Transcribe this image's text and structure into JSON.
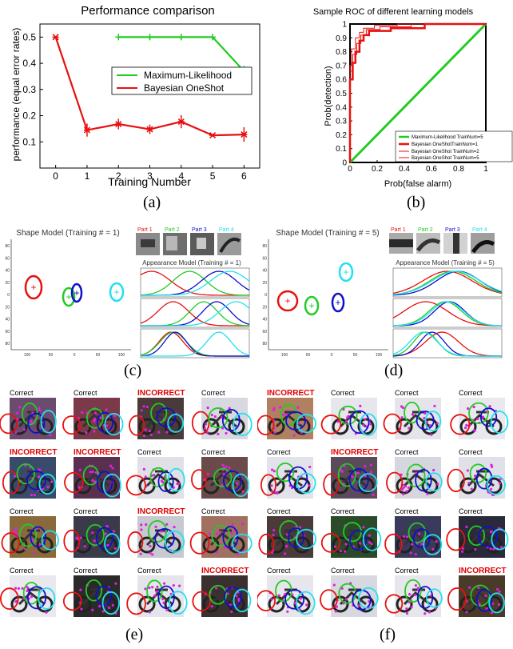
{
  "figure": {
    "captions": [
      "(a)",
      "(b)",
      "(c)",
      "(d)",
      "(e)",
      "(f)"
    ],
    "colors": {
      "red": "#e81010",
      "green": "#22cc22",
      "blue": "#1010cc",
      "cyan": "#22e0f0",
      "magenta": "#dd22dd"
    }
  },
  "chart_data": [
    {
      "type": "line",
      "title": "Performance comparison",
      "xlabel": "Training Number",
      "ylabel": "performance (equal error rates)",
      "xlim": [
        -0.5,
        6.5
      ],
      "ylim": [
        0.0,
        0.55
      ],
      "xticks": [
        "0",
        "1",
        "2",
        "3",
        "4",
        "5",
        "6"
      ],
      "yticks": [
        "0.1",
        "0.2",
        "0.3",
        "0.4",
        "0.5"
      ],
      "legend_position": "center-right",
      "series": [
        {
          "name": "Maximum-Likelihood",
          "color": "#22cc22",
          "x": [
            2,
            3,
            4,
            5,
            6
          ],
          "y": [
            0.5,
            0.5,
            0.5,
            0.5,
            0.37
          ],
          "err": [
            0,
            0,
            0,
            0,
            0.02
          ]
        },
        {
          "name": "Bayesian OneShot",
          "color": "#e81010",
          "x": [
            0,
            1,
            2,
            3,
            4,
            5,
            6
          ],
          "y": [
            0.5,
            0.145,
            0.168,
            0.148,
            0.177,
            0.125,
            0.128
          ],
          "err": [
            0,
            0.025,
            0.02,
            0.018,
            0.025,
            0.005,
            0.028
          ]
        }
      ]
    },
    {
      "type": "line",
      "title": "Sample ROC of different learning models",
      "xlabel": "Prob(false alarm)",
      "ylabel": "Prob(detection)",
      "xlim": [
        0,
        1
      ],
      "ylim": [
        0,
        1
      ],
      "xticks": [
        "0",
        "0.2",
        "0.4",
        "0.6",
        "0.8",
        "1"
      ],
      "yticks": [
        "0",
        "0.1",
        "0.2",
        "0.3",
        "0.4",
        "0.5",
        "0.6",
        "0.7",
        "0.8",
        "0.9",
        "1"
      ],
      "legend_position": "bottom-right",
      "series": [
        {
          "name": "Maximum-Likelihood TrainNum=5",
          "color": "#22cc22",
          "width": 3,
          "points": [
            [
              0,
              0
            ],
            [
              1,
              1
            ]
          ]
        },
        {
          "name": "Bayesian OneShotTrainNum=1",
          "color": "#e81010",
          "width": 2.5,
          "points": [
            [
              0,
              0
            ],
            [
              0,
              0.6
            ],
            [
              0.02,
              0.6
            ],
            [
              0.02,
              0.72
            ],
            [
              0.04,
              0.72
            ],
            [
              0.04,
              0.8
            ],
            [
              0.07,
              0.8
            ],
            [
              0.07,
              0.88
            ],
            [
              0.1,
              0.88
            ],
            [
              0.1,
              0.92
            ],
            [
              0.14,
              0.92
            ],
            [
              0.14,
              0.95
            ],
            [
              0.3,
              0.95
            ],
            [
              0.3,
              0.97
            ],
            [
              0.55,
              0.97
            ],
            [
              0.55,
              1
            ],
            [
              1,
              1
            ]
          ]
        },
        {
          "name": "Bayesian OneShot TrainNum=2",
          "color": "#e81010",
          "width": 1,
          "points": [
            [
              0,
              0
            ],
            [
              0,
              0.66
            ],
            [
              0.02,
              0.66
            ],
            [
              0.02,
              0.78
            ],
            [
              0.05,
              0.78
            ],
            [
              0.05,
              0.86
            ],
            [
              0.08,
              0.86
            ],
            [
              0.08,
              0.92
            ],
            [
              0.12,
              0.92
            ],
            [
              0.12,
              0.96
            ],
            [
              0.22,
              0.96
            ],
            [
              0.22,
              0.98
            ],
            [
              0.45,
              0.98
            ],
            [
              0.45,
              1
            ],
            [
              1,
              1
            ]
          ]
        },
        {
          "name": "Bayesian OneShot TrainNum=5",
          "color": "#e81010",
          "width": 1,
          "points": [
            [
              0,
              0
            ],
            [
              0,
              0.7
            ],
            [
              0.01,
              0.7
            ],
            [
              0.01,
              0.82
            ],
            [
              0.04,
              0.82
            ],
            [
              0.04,
              0.9
            ],
            [
              0.07,
              0.9
            ],
            [
              0.07,
              0.94
            ],
            [
              0.1,
              0.94
            ],
            [
              0.1,
              0.97
            ],
            [
              0.18,
              0.97
            ],
            [
              0.18,
              0.99
            ],
            [
              0.35,
              0.99
            ],
            [
              0.35,
              1
            ],
            [
              1,
              1
            ]
          ]
        }
      ]
    }
  ],
  "panel_c": {
    "shape_title": "Shape Model (Training # = 1)",
    "appearance_title": "Appearance Model (Training # = 1)",
    "parts": [
      "Part 1",
      "Part 2",
      "Part 3",
      "Part 4"
    ],
    "shape_yticks": [
      "80",
      "60",
      "40",
      "20",
      "0",
      "20",
      "40",
      "60",
      "80"
    ],
    "shape_xticks": [
      "100",
      "50",
      "0",
      "50",
      "100"
    ]
  },
  "panel_d": {
    "shape_title": "Shape Model (Training # = 5)",
    "appearance_title": "Appearance Model (Training # = 5)",
    "parts": [
      "Part 1",
      "Part 2",
      "Part 3",
      "Part 4"
    ],
    "shape_yticks": [
      "80",
      "60",
      "40",
      "20",
      "0",
      "20",
      "40",
      "60",
      "80"
    ],
    "shape_xticks": [
      "100",
      "50",
      "0",
      "50",
      "100"
    ]
  },
  "panel_e": {
    "labels": [
      "Correct",
      "Correct",
      "INCORRECT",
      "Correct",
      "INCORRECT",
      "INCORRECT",
      "Correct",
      "Correct",
      "Correct",
      "Correct",
      "INCORRECT",
      "Correct",
      "Correct",
      "Correct",
      "Correct",
      "INCORRECT"
    ]
  },
  "panel_f": {
    "labels": [
      "INCORRECT",
      "Correct",
      "Correct",
      "Correct",
      "Correct",
      "INCORRECT",
      "Correct",
      "Correct",
      "Correct",
      "Correct",
      "Correct",
      "Correct",
      "Correct",
      "Correct",
      "Correct",
      "INCORRECT"
    ]
  }
}
